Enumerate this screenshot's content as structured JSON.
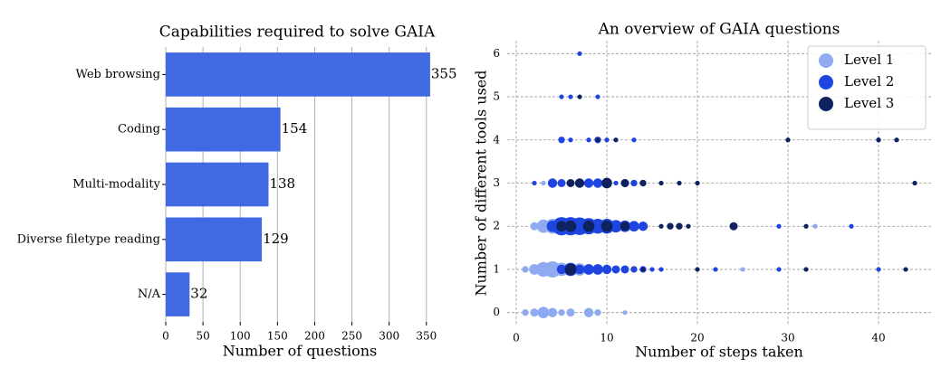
{
  "chart_data": [
    {
      "type": "bar",
      "orientation": "horizontal",
      "title": "Capabilities required to solve GAIA",
      "categories": [
        "Web browsing",
        "Coding",
        "Multi-modality",
        "Diverse filetype reading",
        "N/A"
      ],
      "values": [
        355,
        154,
        138,
        129,
        32
      ],
      "color": "#4169e1",
      "xlabel": "Number of questions",
      "xlim": [
        0,
        360
      ],
      "xticks": [
        0,
        50,
        100,
        150,
        200,
        250,
        300,
        350
      ],
      "grid": true
    },
    {
      "type": "scatter",
      "title": "An overview of GAIA questions",
      "xlabel": "Number of steps taken",
      "ylabel": "Number of different tools used",
      "xlim": [
        -1,
        46
      ],
      "xticks": [
        0,
        10,
        20,
        30,
        40
      ],
      "ylim": [
        -0.3,
        6.3
      ],
      "yticks": [
        0,
        1,
        2,
        3,
        4,
        5,
        6
      ],
      "grid": true,
      "legend": "upper right",
      "series": [
        {
          "name": "Level 1",
          "color": "#8faaf0",
          "x": [
            1,
            2,
            3,
            4,
            5,
            6,
            8,
            9,
            12,
            1,
            2,
            3,
            4,
            5,
            6,
            7,
            8,
            9,
            25,
            2,
            3,
            4,
            5,
            33,
            3
          ],
          "y": [
            0,
            0,
            0,
            0,
            0,
            0,
            0,
            0,
            0,
            1,
            1,
            1,
            1,
            1,
            1,
            1,
            1,
            1,
            1,
            2,
            2,
            2,
            2,
            2,
            3
          ],
          "sizes": [
            2,
            3,
            6,
            4,
            2,
            3,
            4,
            2,
            1,
            2,
            5,
            10,
            12,
            8,
            6,
            7,
            5,
            3,
            1,
            3,
            8,
            10,
            10,
            1,
            1
          ]
        },
        {
          "name": "Level 2",
          "color": "#1f45e0",
          "x": [
            5,
            6,
            7,
            8,
            9,
            10,
            11,
            12,
            13,
            14,
            15,
            16,
            22,
            29,
            40,
            4,
            5,
            6,
            7,
            8,
            9,
            10,
            11,
            12,
            13,
            14,
            29,
            37,
            2,
            4,
            5,
            8,
            9,
            11,
            12,
            13,
            5,
            6,
            8,
            9,
            10,
            13,
            40,
            5,
            6,
            9,
            7
          ],
          "y": [
            1,
            1,
            1,
            1,
            1,
            1,
            1,
            1,
            1,
            1,
            1,
            1,
            1,
            1,
            1,
            2,
            2,
            2,
            2,
            2,
            2,
            2,
            2,
            2,
            2,
            2,
            2,
            2,
            3,
            3,
            3,
            3,
            3,
            3,
            3,
            3,
            4,
            4,
            4,
            4,
            4,
            4,
            4,
            5,
            5,
            5,
            6
          ],
          "sizes": [
            4,
            8,
            4,
            5,
            5,
            4,
            3,
            3,
            2,
            2,
            1,
            1,
            1,
            1,
            1,
            6,
            15,
            15,
            14,
            12,
            10,
            10,
            7,
            6,
            5,
            4,
            1,
            1,
            1,
            4,
            3,
            4,
            4,
            1,
            3,
            2,
            2,
            1,
            1,
            2,
            1,
            1,
            1,
            1,
            1,
            1,
            1
          ]
        },
        {
          "name": "Level 3",
          "color": "#0f2260",
          "x": [
            6,
            14,
            20,
            32,
            43,
            5,
            6,
            8,
            10,
            12,
            16,
            17,
            18,
            19,
            24,
            32,
            6,
            7,
            10,
            12,
            14,
            16,
            18,
            20,
            44,
            9,
            11,
            30,
            40,
            42,
            7
          ],
          "y": [
            1,
            1,
            1,
            1,
            1,
            2,
            2,
            2,
            2,
            2,
            2,
            2,
            2,
            2,
            2,
            2,
            3,
            3,
            3,
            3,
            3,
            3,
            3,
            3,
            3,
            4,
            4,
            4,
            4,
            4,
            5
          ],
          "sizes": [
            6,
            1,
            1,
            1,
            1,
            5,
            6,
            6,
            6,
            4,
            1,
            2,
            2,
            1,
            3,
            1,
            3,
            4,
            5,
            3,
            2,
            1,
            1,
            1,
            1,
            1,
            1,
            1,
            1,
            1,
            1
          ]
        }
      ]
    }
  ]
}
